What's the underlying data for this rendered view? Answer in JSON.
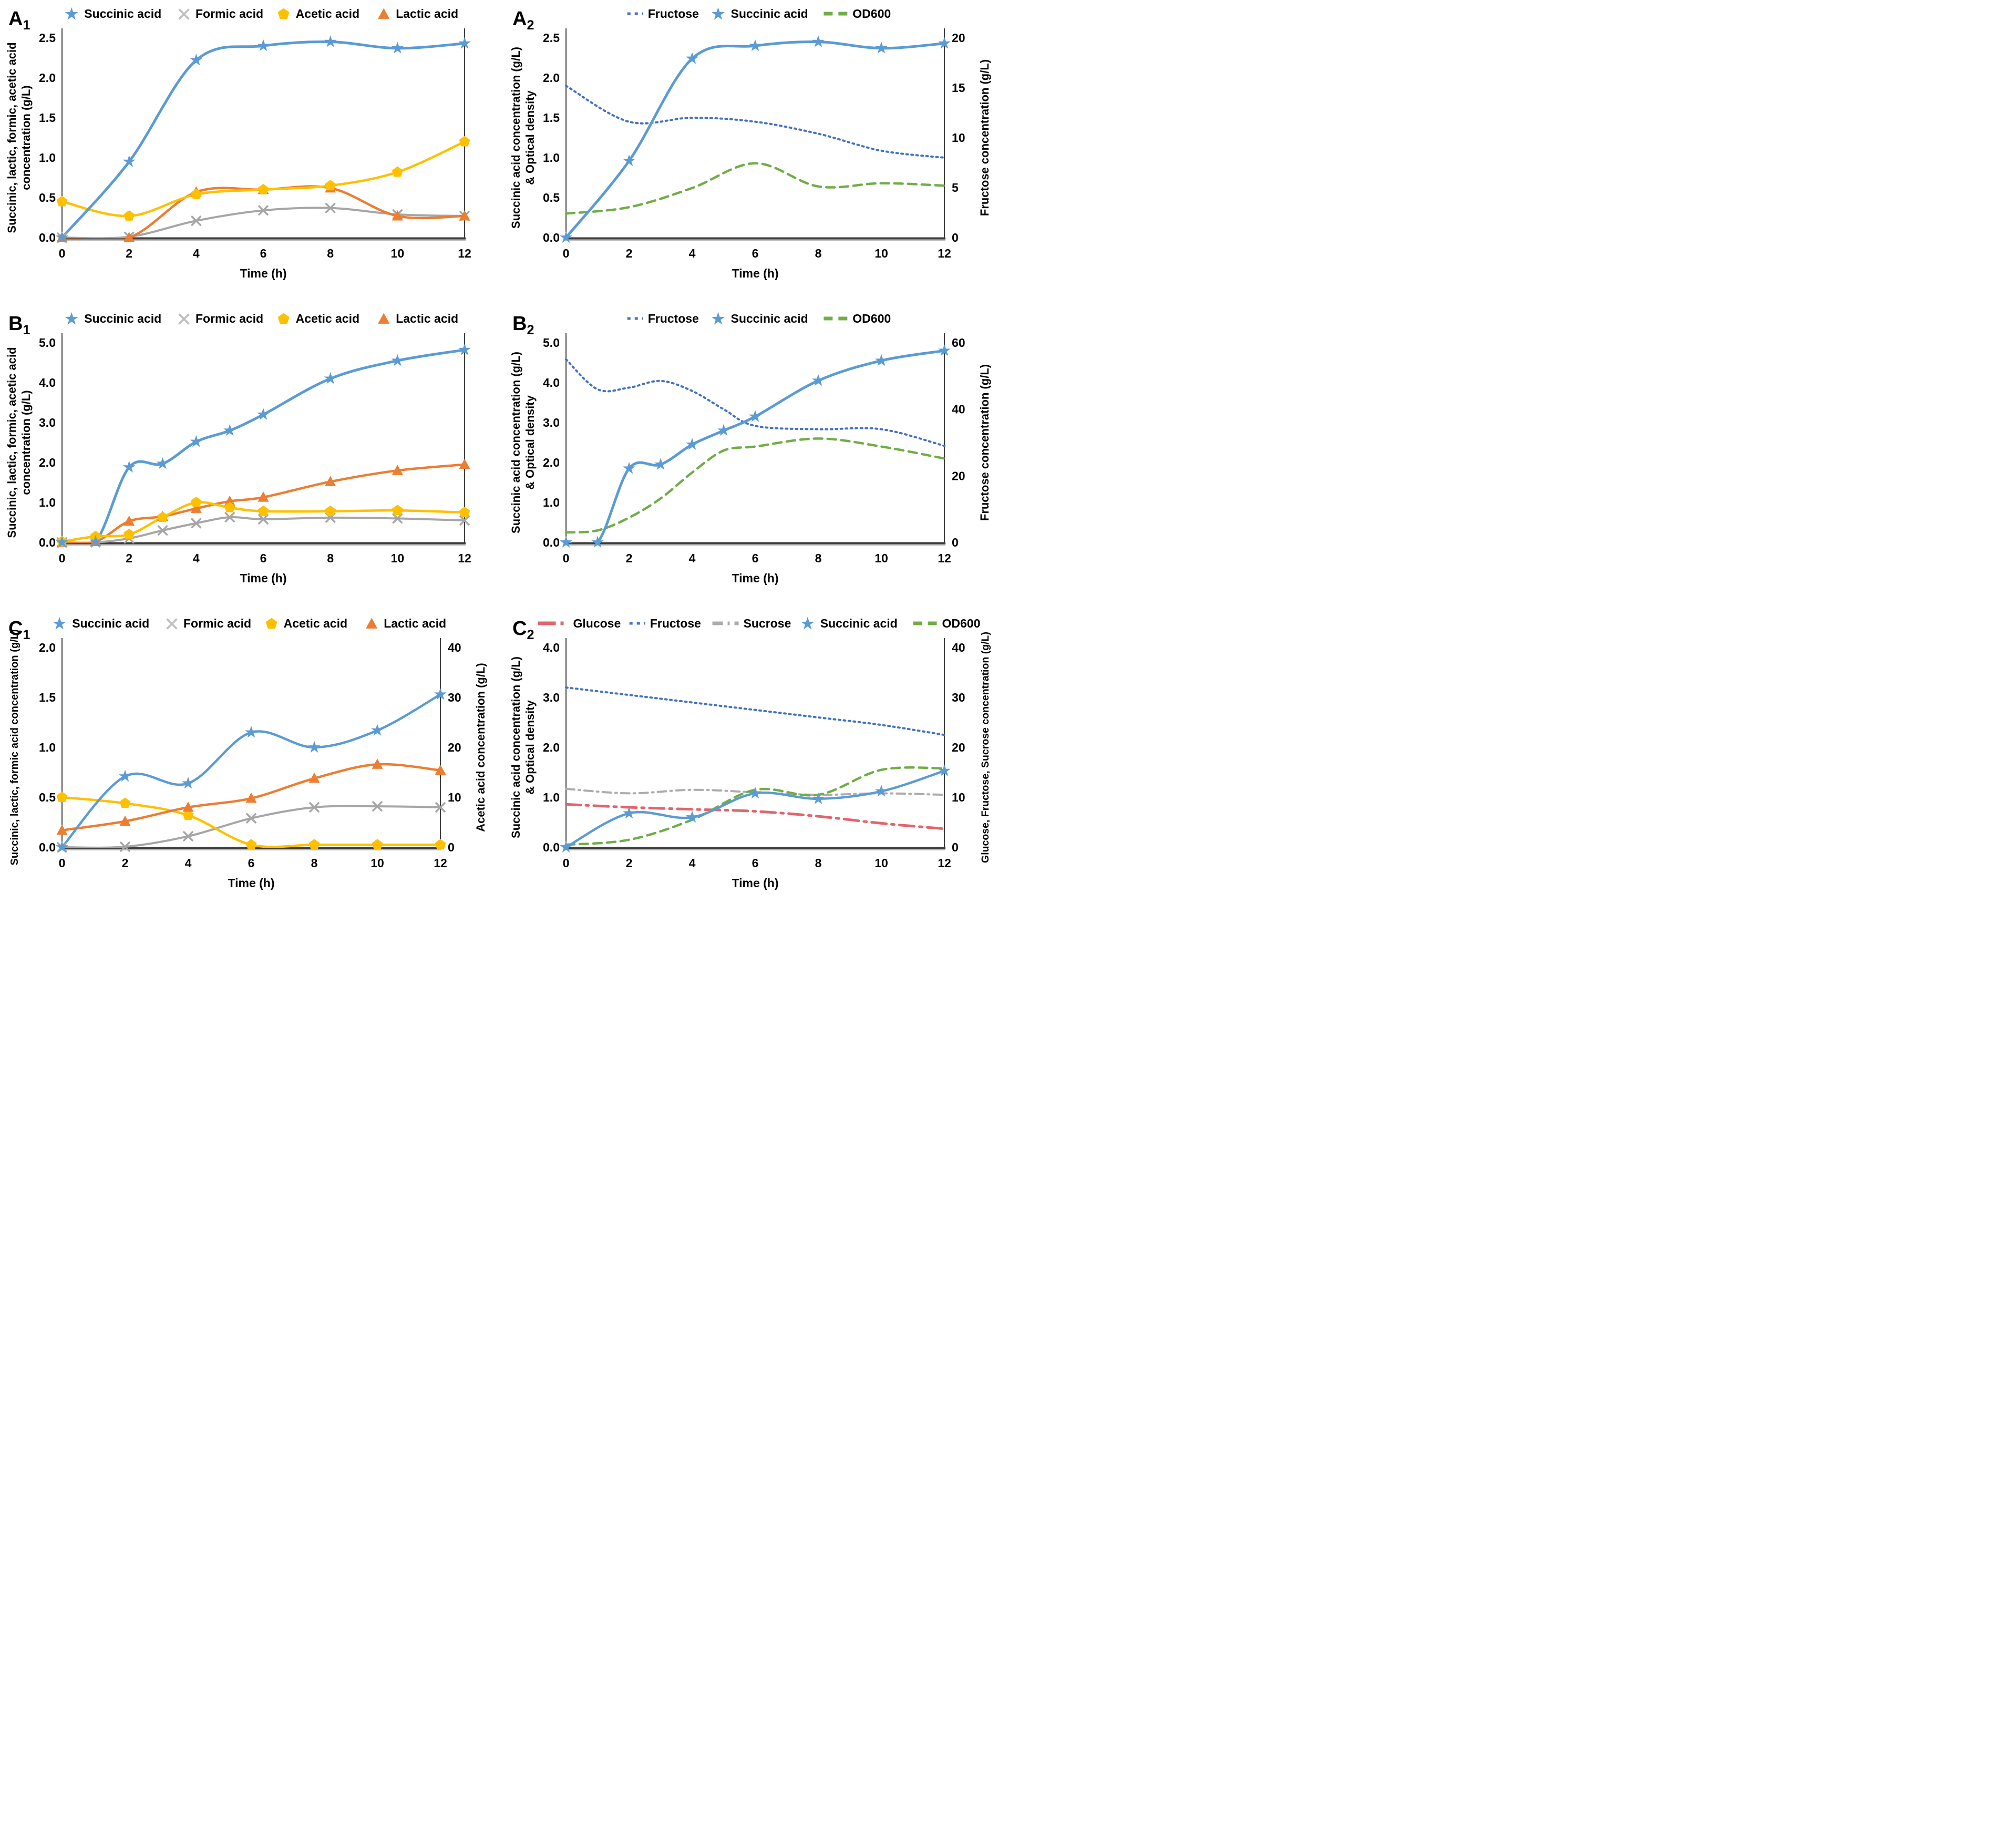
{
  "figure": {
    "background": "#ffffff",
    "columns": 2,
    "rows": 3
  },
  "palette": {
    "succinic_blue": "#5B9BD5",
    "formic_gray": "#A6A6A6",
    "acetic_yellow": "#FFC000",
    "lactic_orange": "#ED7D31",
    "fructose_blue": "#4472C4",
    "od600_green": "#70AD47",
    "glucose_red": "#E2656B",
    "sucrose_gray": "#ACACAC",
    "axis_dark": "#3F3F3F"
  },
  "chart_data": [
    {
      "id": "A1",
      "panel_letter": "A",
      "panel_sub": "1",
      "type": "line",
      "xlabel": "Time (h)",
      "x_range": [
        0,
        12
      ],
      "x_ticks": [
        "0",
        "2",
        "4",
        "6",
        "8",
        "10",
        "12"
      ],
      "left_axis": {
        "label_lines": [
          "Succinic, lactic, formic, acetic acid",
          "concentration (g/L)"
        ],
        "range": [
          0,
          2.5
        ],
        "ticks": [
          "0.0",
          "0.5",
          "1.0",
          "1.5",
          "2.0",
          "2.5"
        ]
      },
      "right_axis": null,
      "legend": [
        {
          "name": "Succinic acid",
          "swatch": "star",
          "color": "#5B9BD5"
        },
        {
          "name": "Formic acid",
          "swatch": "x",
          "color": "#BFBFBF"
        },
        {
          "name": "Acetic acid",
          "swatch": "pentagon",
          "color": "#FFC000"
        },
        {
          "name": "Lactic acid",
          "swatch": "triangle",
          "color": "#ED7D31"
        }
      ],
      "series": [
        {
          "name": "Formic acid",
          "axis": "left",
          "color": "#A6A6A6",
          "style": "solid",
          "marker": "x",
          "width": 4,
          "x": [
            0,
            2,
            4,
            6,
            8,
            10,
            12
          ],
          "values": [
            0,
            0.01,
            0.21,
            0.34,
            0.37,
            0.29,
            0.27
          ]
        },
        {
          "name": "Lactic acid",
          "axis": "left",
          "color": "#ED7D31",
          "style": "solid",
          "marker": "triangle",
          "width": 4.5,
          "x": [
            0,
            2,
            4,
            6,
            8,
            10,
            12
          ],
          "values": [
            0,
            0,
            0.57,
            0.6,
            0.62,
            0.27,
            0.27
          ]
        },
        {
          "name": "Acetic acid",
          "axis": "left",
          "color": "#FFC000",
          "style": "solid",
          "marker": "pentagon",
          "width": 4.5,
          "x": [
            0,
            2,
            4,
            6,
            8,
            10,
            12
          ],
          "values": [
            0.45,
            0.27,
            0.54,
            0.6,
            0.65,
            0.82,
            1.2
          ]
        },
        {
          "name": "Succinic acid",
          "axis": "left",
          "color": "#5B9BD5",
          "style": "solid",
          "marker": "star",
          "width": 5,
          "x": [
            0,
            2,
            4,
            6,
            8,
            10,
            12
          ],
          "values": [
            0,
            0.95,
            2.22,
            2.4,
            2.45,
            2.37,
            2.43
          ]
        }
      ]
    },
    {
      "id": "A2",
      "panel_letter": "A",
      "panel_sub": "2",
      "type": "line",
      "xlabel": "Time (h)",
      "x_range": [
        0,
        12
      ],
      "x_ticks": [
        "0",
        "2",
        "4",
        "6",
        "8",
        "10",
        "12"
      ],
      "left_axis": {
        "label_lines": [
          "Succinic acid concentration (g/L)",
          "& Optical density"
        ],
        "range": [
          0,
          2.5
        ],
        "ticks": [
          "0.0",
          "0.5",
          "1.0",
          "1.5",
          "2.0",
          "2.5"
        ]
      },
      "right_axis": {
        "label_lines": [
          "Fructose concentration (g/L)"
        ],
        "range": [
          0,
          20
        ],
        "ticks": [
          "0",
          "5",
          "10",
          "15",
          "20"
        ]
      },
      "legend": [
        {
          "name": "Fructose",
          "swatch": "dotted",
          "color": "#4472C4"
        },
        {
          "name": "Succinic acid",
          "swatch": "star",
          "color": "#5B9BD5"
        },
        {
          "name": "OD600",
          "swatch": "dashed",
          "color": "#70AD47"
        }
      ],
      "series": [
        {
          "name": "Fructose",
          "axis": "right",
          "color": "#4472C4",
          "style": "dotted",
          "marker": null,
          "width": 4,
          "x": [
            0,
            2,
            4,
            6,
            8,
            10,
            12
          ],
          "values": [
            15.2,
            11.6,
            12,
            11.6,
            10.4,
            8.7,
            8
          ]
        },
        {
          "name": "OD600",
          "axis": "left",
          "color": "#70AD47",
          "style": "dashed",
          "marker": null,
          "width": 4.5,
          "x": [
            0,
            2,
            4,
            6,
            8,
            10,
            12
          ],
          "values": [
            0.3,
            0.38,
            0.62,
            0.93,
            0.64,
            0.68,
            0.65
          ]
        },
        {
          "name": "Succinic acid",
          "axis": "left",
          "color": "#5B9BD5",
          "style": "solid",
          "marker": "star",
          "width": 5,
          "x": [
            0,
            2,
            4,
            6,
            8,
            10,
            12
          ],
          "values": [
            0,
            0.96,
            2.24,
            2.4,
            2.45,
            2.37,
            2.43
          ]
        }
      ]
    },
    {
      "id": "B1",
      "panel_letter": "B",
      "panel_sub": "1",
      "type": "line",
      "xlabel": "Time (h)",
      "x_range": [
        0,
        12
      ],
      "x_ticks": [
        "0",
        "2",
        "4",
        "6",
        "8",
        "10",
        "12"
      ],
      "left_axis": {
        "label_lines": [
          "Succinic, lactic, formic, acetic acid",
          "concentration (g/L)"
        ],
        "range": [
          0,
          5
        ],
        "ticks": [
          "0.0",
          "1.0",
          "2.0",
          "3.0",
          "4.0",
          "5.0"
        ]
      },
      "right_axis": null,
      "legend": [
        {
          "name": "Succinic acid",
          "swatch": "star",
          "color": "#5B9BD5"
        },
        {
          "name": "Formic acid",
          "swatch": "x",
          "color": "#BFBFBF"
        },
        {
          "name": "Acetic acid",
          "swatch": "pentagon",
          "color": "#FFC000"
        },
        {
          "name": "Lactic acid",
          "swatch": "triangle",
          "color": "#ED7D31"
        }
      ],
      "series": [
        {
          "name": "Formic acid",
          "axis": "left",
          "color": "#A6A6A6",
          "style": "solid",
          "marker": "x",
          "width": 4,
          "x": [
            0,
            1,
            2,
            3,
            4,
            5,
            6,
            8,
            10,
            12
          ],
          "values": [
            0,
            0,
            0.1,
            0.3,
            0.48,
            0.63,
            0.58,
            0.62,
            0.6,
            0.55
          ]
        },
        {
          "name": "Lactic acid",
          "axis": "left",
          "color": "#ED7D31",
          "style": "solid",
          "marker": "triangle",
          "width": 4.5,
          "x": [
            0,
            1,
            2,
            3,
            4,
            5,
            6,
            8,
            10,
            12
          ],
          "values": [
            0,
            0.02,
            0.53,
            0.65,
            0.85,
            1.03,
            1.13,
            1.52,
            1.8,
            1.95
          ]
        },
        {
          "name": "Acetic acid",
          "axis": "left",
          "color": "#FFC000",
          "style": "solid",
          "marker": "pentagon",
          "width": 4.5,
          "x": [
            0,
            1,
            2,
            3,
            4,
            5,
            6,
            8,
            10,
            12
          ],
          "values": [
            0.02,
            0.15,
            0.2,
            0.63,
            1,
            0.87,
            0.78,
            0.78,
            0.8,
            0.75
          ]
        },
        {
          "name": "Succinic acid",
          "axis": "left",
          "color": "#5B9BD5",
          "style": "solid",
          "marker": "star",
          "width": 5,
          "x": [
            0,
            1,
            2,
            3,
            4,
            5,
            6,
            8,
            10,
            12
          ],
          "values": [
            0,
            0.02,
            1.88,
            1.97,
            2.52,
            2.8,
            3.2,
            4.1,
            4.55,
            4.82
          ]
        }
      ]
    },
    {
      "id": "B2",
      "panel_letter": "B",
      "panel_sub": "2",
      "type": "line",
      "xlabel": "Time (h)",
      "x_range": [
        0,
        12
      ],
      "x_ticks": [
        "0",
        "2",
        "4",
        "6",
        "8",
        "10",
        "12"
      ],
      "left_axis": {
        "label_lines": [
          "Succinic acid concentration (g/L)",
          "& Optical density"
        ],
        "range": [
          0,
          5
        ],
        "ticks": [
          "0.0",
          "1.0",
          "2.0",
          "3.0",
          "4.0",
          "5.0"
        ]
      },
      "right_axis": {
        "label_lines": [
          "Fructose concentration (g/L)"
        ],
        "range": [
          0,
          60
        ],
        "ticks": [
          "0",
          "20",
          "40",
          "60"
        ]
      },
      "legend": [
        {
          "name": "Fructose",
          "swatch": "dotted",
          "color": "#4472C4"
        },
        {
          "name": "Succinic acid",
          "swatch": "star",
          "color": "#5B9BD5"
        },
        {
          "name": "OD600",
          "swatch": "dashed",
          "color": "#70AD47"
        }
      ],
      "series": [
        {
          "name": "Fructose",
          "axis": "right",
          "color": "#4472C4",
          "style": "dotted",
          "marker": null,
          "width": 4,
          "x": [
            0,
            1,
            2,
            3,
            4,
            5,
            6,
            8,
            10,
            12
          ],
          "values": [
            55,
            46,
            46.5,
            48.5,
            45.5,
            40,
            35,
            34,
            34,
            29
          ]
        },
        {
          "name": "OD600",
          "axis": "left",
          "color": "#70AD47",
          "style": "dashed",
          "marker": null,
          "width": 4.5,
          "x": [
            0,
            1,
            2,
            3,
            4,
            5,
            6,
            8,
            10,
            12
          ],
          "values": [
            0.25,
            0.3,
            0.62,
            1.1,
            1.75,
            2.3,
            2.4,
            2.6,
            2.4,
            2.1
          ]
        },
        {
          "name": "Succinic acid",
          "axis": "left",
          "color": "#5B9BD5",
          "style": "solid",
          "marker": "star",
          "width": 5,
          "x": [
            0,
            1,
            2,
            3,
            4,
            5,
            6,
            8,
            10,
            12
          ],
          "values": [
            0,
            0,
            1.85,
            1.95,
            2.45,
            2.8,
            3.15,
            4.05,
            4.55,
            4.8
          ]
        }
      ]
    },
    {
      "id": "C1",
      "panel_letter": "C",
      "panel_sub": "1",
      "type": "line",
      "xlabel": "Time (h)",
      "x_range": [
        0,
        12
      ],
      "x_ticks": [
        "0",
        "2",
        "4",
        "6",
        "8",
        "10",
        "12"
      ],
      "left_axis": {
        "label_lines": [
          "Succinic, lactic, formic acid concentration (g/L)"
        ],
        "range": [
          0,
          2
        ],
        "ticks": [
          "0.0",
          "0.5",
          "1.0",
          "1.5",
          "2.0"
        ]
      },
      "right_axis": {
        "label_lines": [
          "Acetic acid concentration (g/L)"
        ],
        "range": [
          0,
          40
        ],
        "ticks": [
          "0",
          "10",
          "20",
          "30",
          "40"
        ]
      },
      "legend": [
        {
          "name": "Succinic acid",
          "swatch": "star",
          "color": "#5B9BD5"
        },
        {
          "name": "Formic acid",
          "swatch": "x",
          "color": "#BFBFBF"
        },
        {
          "name": "Acetic acid",
          "swatch": "pentagon",
          "color": "#FFC000"
        },
        {
          "name": "Lactic acid",
          "swatch": "triangle",
          "color": "#ED7D31"
        }
      ],
      "series": [
        {
          "name": "Formic acid",
          "axis": "left",
          "color": "#A6A6A6",
          "style": "solid",
          "marker": "x",
          "width": 4,
          "x": [
            0,
            2,
            4,
            6,
            8,
            10,
            12
          ],
          "values": [
            0,
            0.005,
            0.11,
            0.29,
            0.4,
            0.41,
            0.4
          ]
        },
        {
          "name": "Acetic acid",
          "axis": "right",
          "color": "#FFC000",
          "style": "solid",
          "marker": "pentagon",
          "width": 4.5,
          "x": [
            0,
            2,
            4,
            6,
            8,
            10,
            12
          ],
          "values": [
            10,
            8.8,
            6.4,
            0.5,
            0.5,
            0.5,
            0.5
          ]
        },
        {
          "name": "Lactic acid",
          "axis": "left",
          "color": "#ED7D31",
          "style": "solid",
          "marker": "triangle",
          "width": 4.5,
          "x": [
            0,
            2,
            4,
            6,
            8,
            10,
            12
          ],
          "values": [
            0.17,
            0.26,
            0.4,
            0.49,
            0.69,
            0.83,
            0.77
          ]
        },
        {
          "name": "Succinic acid",
          "axis": "left",
          "color": "#5B9BD5",
          "style": "solid",
          "marker": "star",
          "width": 4.5,
          "x": [
            0,
            2,
            4,
            6,
            8,
            10,
            12
          ],
          "values": [
            0,
            0.71,
            0.64,
            1.15,
            1,
            1.17,
            1.53
          ]
        }
      ]
    },
    {
      "id": "C2",
      "panel_letter": "C",
      "panel_sub": "2",
      "type": "line",
      "xlabel": "Time (h)",
      "x_range": [
        0,
        12
      ],
      "x_ticks": [
        "0",
        "2",
        "4",
        "6",
        "8",
        "10",
        "12"
      ],
      "left_axis": {
        "label_lines": [
          "Succinic acid concentration (g/L)",
          "& Optical density"
        ],
        "range": [
          0,
          4
        ],
        "ticks": [
          "0.0",
          "1.0",
          "2.0",
          "3.0",
          "4.0"
        ]
      },
      "right_axis": {
        "label_lines": [
          "Glucose, Fructose, Sucrose concentration (g/L)"
        ],
        "range": [
          0,
          40
        ],
        "ticks": [
          "0",
          "10",
          "20",
          "30",
          "40"
        ],
        "small_font": true
      },
      "legend": [
        {
          "name": "Glucose",
          "swatch": "dashdot-long",
          "color": "#E2656B"
        },
        {
          "name": "Fructose",
          "swatch": "dotted",
          "color": "#4472C4"
        },
        {
          "name": "Sucrose",
          "swatch": "dashdot",
          "color": "#ACACAC"
        },
        {
          "name": "Succinic acid",
          "swatch": "star",
          "color": "#5B9BD5"
        },
        {
          "name": "OD600",
          "swatch": "dashed",
          "color": "#70AD47"
        }
      ],
      "series": [
        {
          "name": "Sucrose",
          "axis": "right",
          "color": "#ACACAC",
          "style": "dashdot",
          "marker": null,
          "width": 4,
          "x": [
            0,
            2,
            4,
            6,
            8,
            10,
            12
          ],
          "values": [
            11.7,
            10.8,
            11.5,
            11,
            10.5,
            10.8,
            10.5
          ]
        },
        {
          "name": "Glucose",
          "axis": "right",
          "color": "#E2656B",
          "style": "dashdot-long",
          "marker": null,
          "width": 5,
          "x": [
            0,
            2,
            4,
            6,
            8,
            10,
            12
          ],
          "values": [
            8.6,
            8,
            7.6,
            7.2,
            6.2,
            4.8,
            3.7
          ]
        },
        {
          "name": "Fructose",
          "axis": "right",
          "color": "#4472C4",
          "style": "dotted",
          "marker": null,
          "width": 4,
          "x": [
            0,
            2,
            4,
            6,
            8,
            10,
            12
          ],
          "values": [
            32,
            30.5,
            29,
            27.5,
            26,
            24.5,
            22.5
          ]
        },
        {
          "name": "OD600",
          "axis": "left",
          "color": "#70AD47",
          "style": "dashed",
          "marker": null,
          "width": 4.5,
          "x": [
            0,
            2,
            4,
            6,
            8,
            10,
            12
          ],
          "values": [
            0.05,
            0.15,
            0.55,
            1.15,
            1.05,
            1.55,
            1.58
          ]
        },
        {
          "name": "Succinic acid",
          "axis": "left",
          "color": "#5B9BD5",
          "style": "solid",
          "marker": "star",
          "width": 4.5,
          "x": [
            0,
            2,
            4,
            6,
            8,
            10,
            12
          ],
          "values": [
            0,
            0.68,
            0.6,
            1.08,
            0.97,
            1.12,
            1.53
          ]
        }
      ]
    }
  ]
}
